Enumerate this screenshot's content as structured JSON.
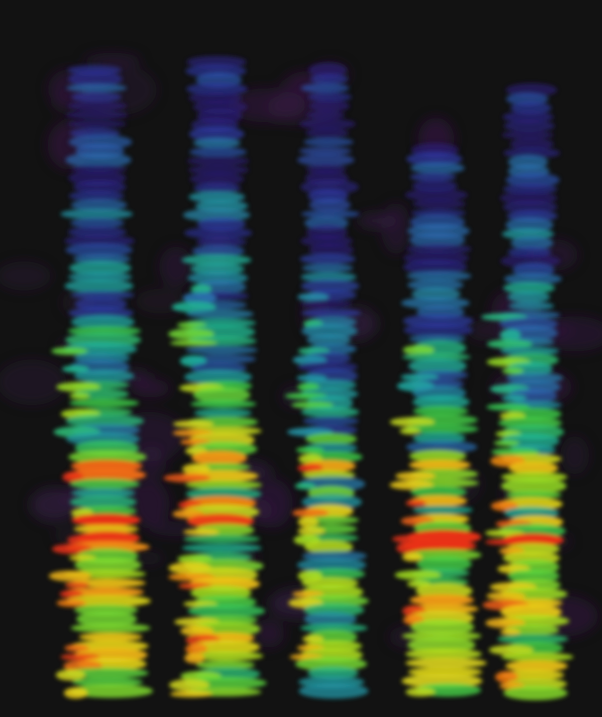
{
  "view": {
    "kind": "3d-spectrogram-visualization",
    "background": "#121212",
    "colormap": [
      "#2a0f3a",
      "#2c1a7a",
      "#2f3fb0",
      "#2a7fb6",
      "#1fb6a0",
      "#3fd24a",
      "#a8e320",
      "#f0d21a",
      "#f58a12",
      "#e8201a"
    ],
    "syllable_columns": 5,
    "peak_intensity_by_column": [
      0.95,
      0.9,
      0.72,
      0.95,
      0.9
    ]
  }
}
